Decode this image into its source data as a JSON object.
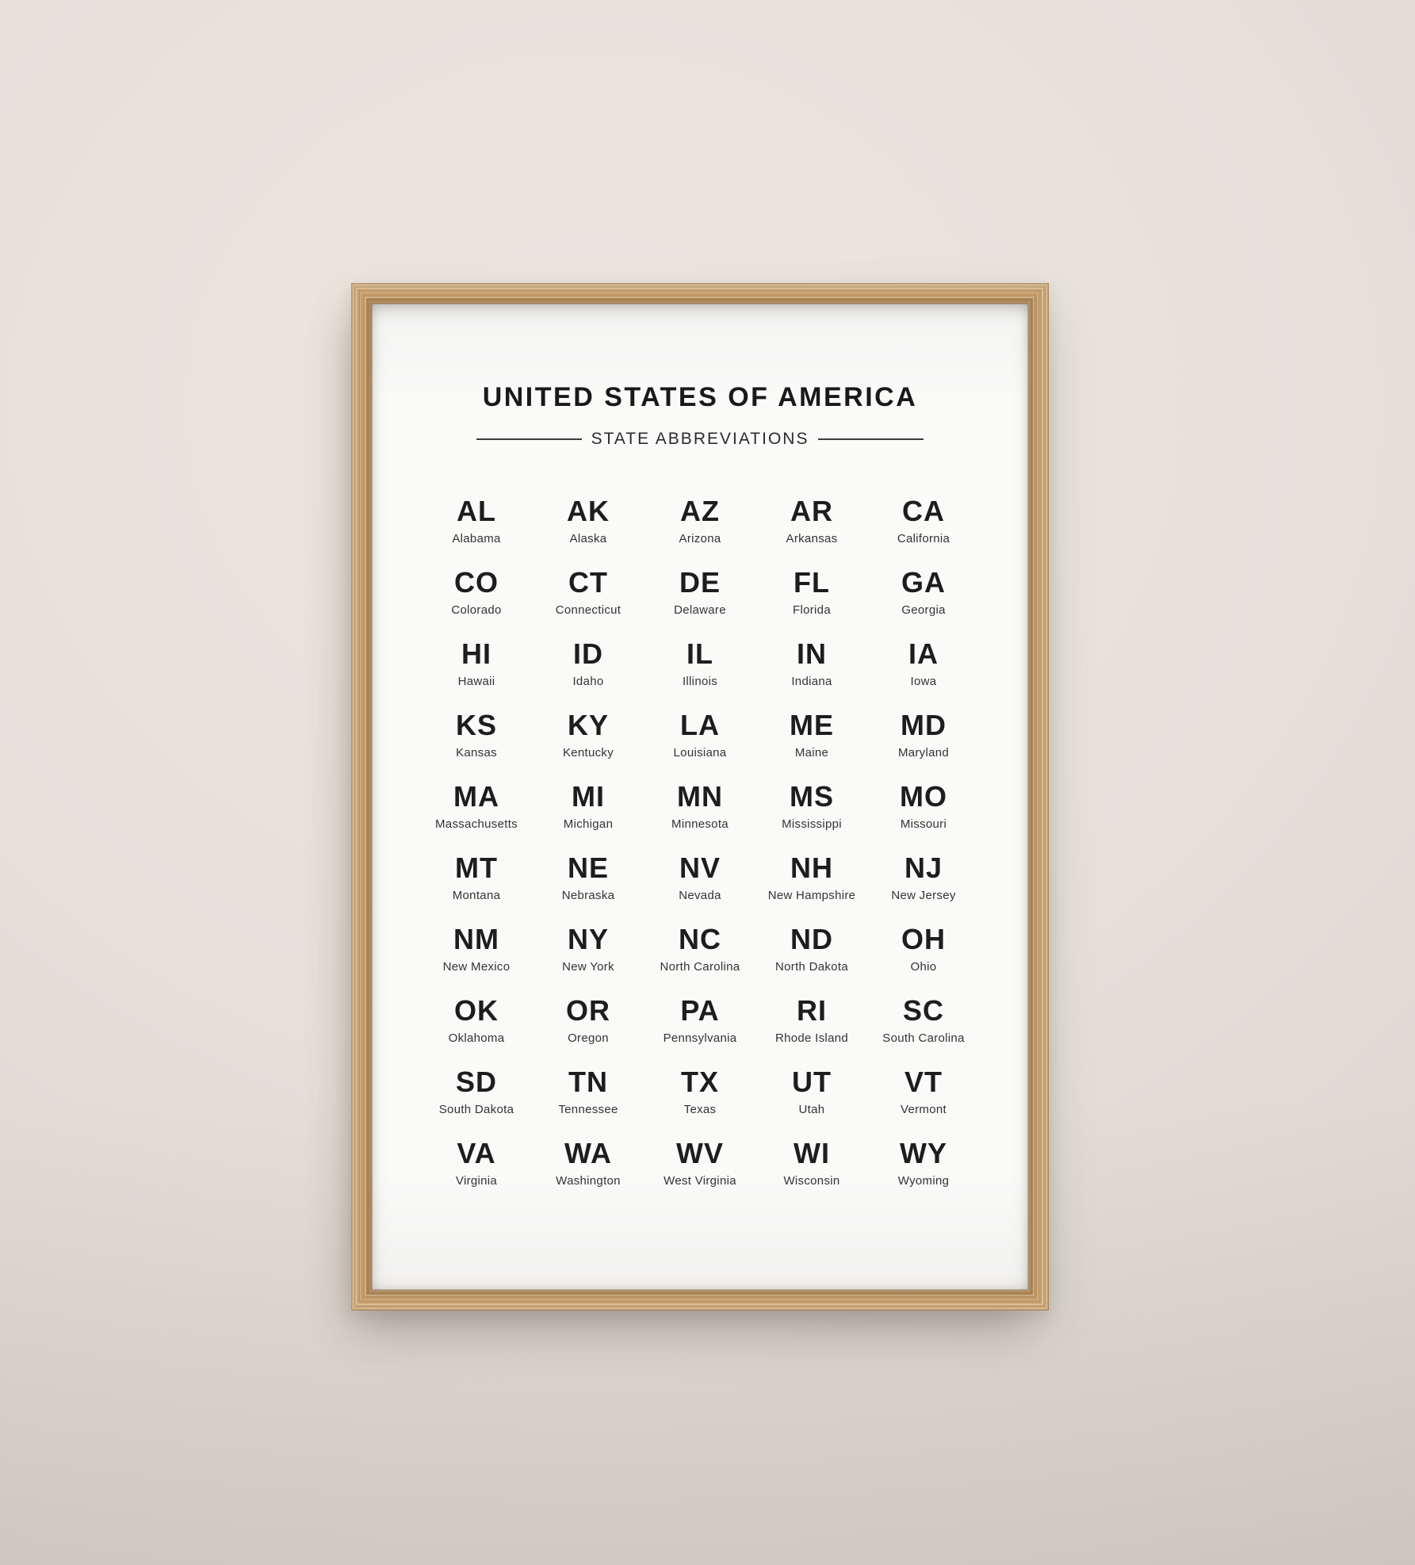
{
  "poster": {
    "title": "UNITED STATES OF AMERICA",
    "subtitle": "STATE ABBREVIATIONS",
    "states": [
      {
        "abbr": "AL",
        "name": "Alabama"
      },
      {
        "abbr": "AK",
        "name": "Alaska"
      },
      {
        "abbr": "AZ",
        "name": "Arizona"
      },
      {
        "abbr": "AR",
        "name": "Arkansas"
      },
      {
        "abbr": "CA",
        "name": "California"
      },
      {
        "abbr": "CO",
        "name": "Colorado"
      },
      {
        "abbr": "CT",
        "name": "Connecticut"
      },
      {
        "abbr": "DE",
        "name": "Delaware"
      },
      {
        "abbr": "FL",
        "name": "Florida"
      },
      {
        "abbr": "GA",
        "name": "Georgia"
      },
      {
        "abbr": "HI",
        "name": "Hawaii"
      },
      {
        "abbr": "ID",
        "name": "Idaho"
      },
      {
        "abbr": "IL",
        "name": "Illinois"
      },
      {
        "abbr": "IN",
        "name": "Indiana"
      },
      {
        "abbr": "IA",
        "name": "Iowa"
      },
      {
        "abbr": "KS",
        "name": "Kansas"
      },
      {
        "abbr": "KY",
        "name": "Kentucky"
      },
      {
        "abbr": "LA",
        "name": "Louisiana"
      },
      {
        "abbr": "ME",
        "name": "Maine"
      },
      {
        "abbr": "MD",
        "name": "Maryland"
      },
      {
        "abbr": "MA",
        "name": "Massachusetts"
      },
      {
        "abbr": "MI",
        "name": "Michigan"
      },
      {
        "abbr": "MN",
        "name": "Minnesota"
      },
      {
        "abbr": "MS",
        "name": "Mississippi"
      },
      {
        "abbr": "MO",
        "name": "Missouri"
      },
      {
        "abbr": "MT",
        "name": "Montana"
      },
      {
        "abbr": "NE",
        "name": "Nebraska"
      },
      {
        "abbr": "NV",
        "name": "Nevada"
      },
      {
        "abbr": "NH",
        "name": "New Hampshire"
      },
      {
        "abbr": "NJ",
        "name": "New Jersey"
      },
      {
        "abbr": "NM",
        "name": "New Mexico"
      },
      {
        "abbr": "NY",
        "name": "New York"
      },
      {
        "abbr": "NC",
        "name": "North Carolina"
      },
      {
        "abbr": "ND",
        "name": "North Dakota"
      },
      {
        "abbr": "OH",
        "name": "Ohio"
      },
      {
        "abbr": "OK",
        "name": "Oklahoma"
      },
      {
        "abbr": "OR",
        "name": "Oregon"
      },
      {
        "abbr": "PA",
        "name": "Pennsylvania"
      },
      {
        "abbr": "RI",
        "name": "Rhode Island"
      },
      {
        "abbr": "SC",
        "name": "South Carolina"
      },
      {
        "abbr": "SD",
        "name": "South Dakota"
      },
      {
        "abbr": "TN",
        "name": "Tennessee"
      },
      {
        "abbr": "TX",
        "name": "Texas"
      },
      {
        "abbr": "UT",
        "name": "Utah"
      },
      {
        "abbr": "VT",
        "name": "Vermont"
      },
      {
        "abbr": "VA",
        "name": "Virginia"
      },
      {
        "abbr": "WA",
        "name": "Washington"
      },
      {
        "abbr": "WV",
        "name": "West Virginia"
      },
      {
        "abbr": "WI",
        "name": "Wisconsin"
      },
      {
        "abbr": "WY",
        "name": "Wyoming"
      }
    ]
  },
  "colors": {
    "wall": "#e3ddd6",
    "frame_wood": "#c8a271",
    "paper": "#fafaf9",
    "ink": "#191919"
  }
}
